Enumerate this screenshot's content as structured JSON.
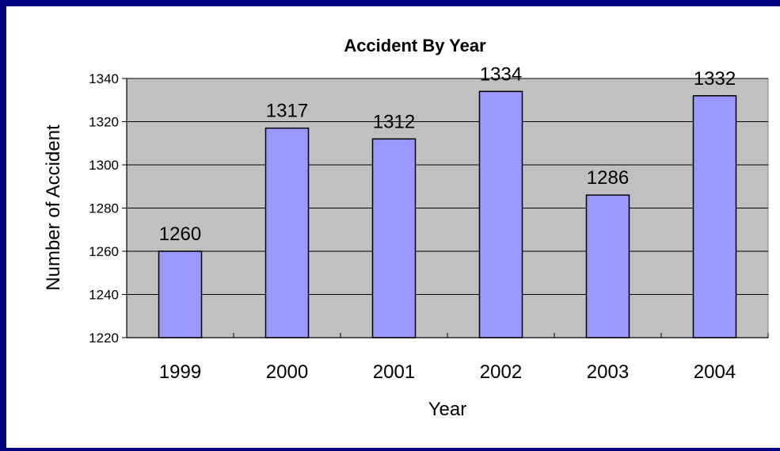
{
  "chart_data": {
    "type": "bar",
    "title": "Accident By Year",
    "xlabel": "Year",
    "ylabel": "Number of Accident",
    "categories": [
      "1999",
      "2000",
      "2001",
      "2002",
      "2003",
      "2004"
    ],
    "values": [
      1260,
      1317,
      1312,
      1334,
      1286,
      1332
    ],
    "data_labels": [
      "1260",
      "1317",
      "1312",
      "1334",
      "1286",
      "1332"
    ],
    "ylim": [
      1220,
      1340
    ],
    "yticks": [
      1220,
      1240,
      1260,
      1280,
      1300,
      1320,
      1340
    ],
    "ytick_labels": [
      "1220",
      "1240",
      "1260",
      "1280",
      "1300",
      "1320",
      "1340"
    ],
    "grid": true,
    "legend": "none"
  },
  "colors": {
    "bar_fill": "#9999ff",
    "bar_stroke": "#000000",
    "plot_background": "#c0c0c0",
    "frame_border": "#000080",
    "gridline": "#000000",
    "text": "#000000"
  }
}
